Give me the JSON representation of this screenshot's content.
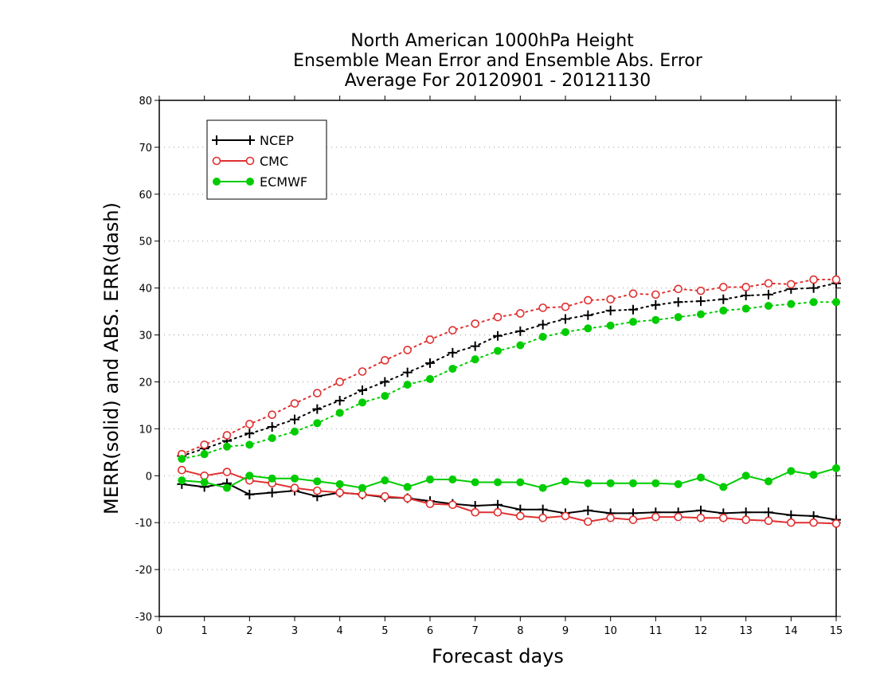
{
  "chart_data": {
    "type": "line",
    "title": [
      "North American 1000hPa Height",
      "Ensemble Mean Error and Ensemble Abs. Error",
      "Average For 20120901 - 20121130"
    ],
    "xlabel": "Forecast days",
    "ylabel": "MERR(solid) and ABS. ERR(dash)",
    "xlim": [
      0,
      15
    ],
    "ylim": [
      -30,
      80
    ],
    "x_ticks": [
      "0",
      "1",
      "2",
      "3",
      "4",
      "5",
      "6",
      "7",
      "8",
      "9",
      "10",
      "11",
      "12",
      "13",
      "14",
      "15"
    ],
    "y_ticks": [
      "80",
      "70",
      "60",
      "50",
      "40",
      "30",
      "20",
      "10",
      "0",
      "-10",
      "-20",
      "-30"
    ],
    "grid": "horizontal dotted",
    "legend_position": "top-left",
    "x": [
      0.5,
      1,
      1.5,
      2,
      2.5,
      3,
      3.5,
      4,
      4.5,
      5,
      5.5,
      6,
      6.5,
      7,
      7.5,
      8,
      8.5,
      9,
      9.5,
      10,
      10.5,
      11,
      11.5,
      12,
      12.5,
      13,
      13.5,
      14,
      14.5,
      15
    ],
    "series": [
      {
        "name": "NCEP",
        "color": "#000000",
        "marker": "plus",
        "abs_err": [
          4.2,
          5.8,
          7.4,
          9.0,
          10.4,
          12.0,
          14.2,
          16.0,
          18.2,
          20.0,
          22.0,
          24.0,
          26.2,
          27.6,
          29.8,
          30.8,
          32.2,
          33.4,
          34.2,
          35.2,
          35.4,
          36.4,
          37.0,
          37.2,
          37.6,
          38.4,
          38.6,
          39.8,
          40.0,
          41.0
        ],
        "mean_err": [
          -1.8,
          -2.4,
          -1.6,
          -4.0,
          -3.6,
          -3.2,
          -4.4,
          -3.6,
          -4.0,
          -4.6,
          -4.8,
          -5.4,
          -6.0,
          -6.4,
          -6.2,
          -7.2,
          -7.2,
          -8.0,
          -7.4,
          -8.0,
          -8.0,
          -7.8,
          -7.8,
          -7.4,
          -8.0,
          -7.8,
          -7.8,
          -8.4,
          -8.6,
          -9.4
        ]
      },
      {
        "name": "CMC",
        "color": "#e03030",
        "marker": "open-circle",
        "abs_err": [
          4.6,
          6.6,
          8.6,
          11.0,
          13.0,
          15.4,
          17.6,
          20.0,
          22.2,
          24.6,
          26.8,
          29.0,
          31.0,
          32.4,
          33.8,
          34.6,
          35.8,
          36.0,
          37.4,
          37.6,
          38.8,
          38.6,
          39.8,
          39.4,
          40.2,
          40.2,
          41.0,
          40.8,
          41.8,
          41.8
        ],
        "mean_err": [
          1.2,
          0.0,
          0.8,
          -1.0,
          -1.6,
          -2.6,
          -3.2,
          -3.6,
          -4.0,
          -4.4,
          -4.8,
          -6.0,
          -6.2,
          -7.8,
          -7.8,
          -8.6,
          -9.0,
          -8.6,
          -9.8,
          -9.0,
          -9.4,
          -8.8,
          -8.8,
          -9.0,
          -9.0,
          -9.4,
          -9.6,
          -10.0,
          -10.0,
          -10.2
        ]
      },
      {
        "name": "ECMWF",
        "color": "#00cc00",
        "marker": "filled-circle",
        "abs_err": [
          3.6,
          4.6,
          6.2,
          6.6,
          8.0,
          9.4,
          11.2,
          13.4,
          15.6,
          17.0,
          19.4,
          20.6,
          22.8,
          24.8,
          26.6,
          27.8,
          29.6,
          30.6,
          31.4,
          32.0,
          32.8,
          33.2,
          33.8,
          34.4,
          35.2,
          35.6,
          36.2,
          36.6,
          37.0,
          37.0
        ],
        "mean_err": [
          -1.0,
          -1.4,
          -2.6,
          0.0,
          -0.6,
          -0.6,
          -1.2,
          -1.8,
          -2.6,
          -1.0,
          -2.4,
          -0.8,
          -0.8,
          -1.4,
          -1.4,
          -1.4,
          -2.6,
          -1.2,
          -1.6,
          -1.6,
          -1.6,
          -1.6,
          -1.8,
          -0.4,
          -2.4,
          0.0,
          -1.2,
          1.0,
          0.2,
          1.6
        ]
      }
    ]
  }
}
